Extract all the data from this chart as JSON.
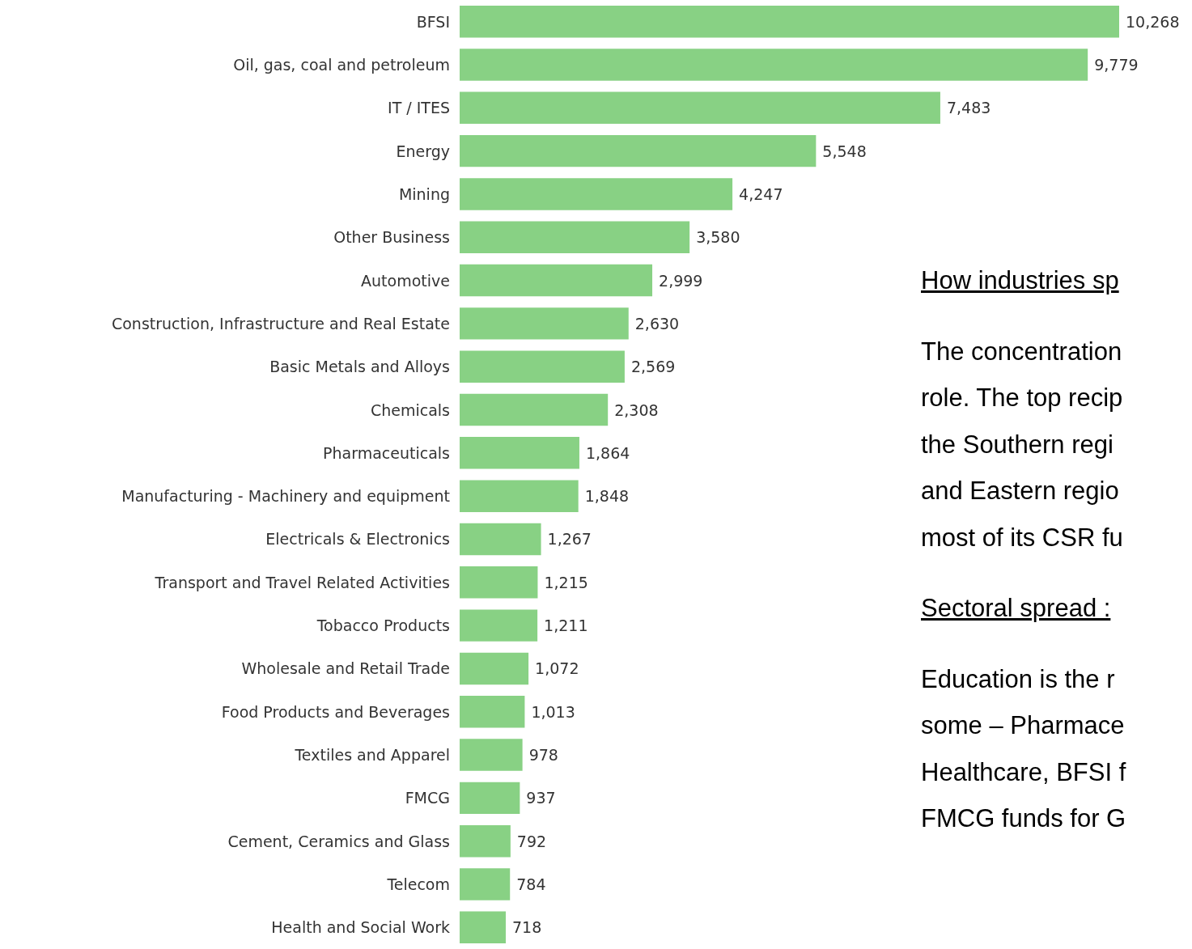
{
  "chart_data": {
    "type": "bar",
    "orientation": "horizontal",
    "categories": [
      "BFSI",
      "Oil, gas, coal and petroleum",
      "IT / ITES",
      "Energy",
      "Mining",
      "Other Business",
      "Automotive",
      "Construction, Infrastructure and Real Estate",
      "Basic Metals and Alloys",
      "Chemicals",
      "Pharmaceuticals",
      "Manufacturing - Machinery and equipment",
      "Electricals & Electronics",
      "Transport and Travel Related Activities",
      "Tobacco Products",
      "Wholesale and Retail Trade",
      "Food Products and Beverages",
      "Textiles and Apparel",
      "FMCG",
      "Cement, Ceramics and Glass",
      "Telecom",
      "Health and Social Work"
    ],
    "values": [
      10268,
      9779,
      7483,
      5548,
      4247,
      3580,
      2999,
      2630,
      2569,
      2308,
      1864,
      1848,
      1267,
      1215,
      1211,
      1072,
      1013,
      978,
      937,
      792,
      784,
      718
    ],
    "value_labels": [
      "10,268",
      "9,779",
      "7,483",
      "5,548",
      "4,247",
      "3,580",
      "2,999",
      "2,630",
      "2,569",
      "2,308",
      "1,864",
      "1,848",
      "1,267",
      "1,215",
      "1,211",
      "1,072",
      "1,013",
      "978",
      "937",
      "792",
      "784",
      "718"
    ],
    "color": "#88d184",
    "annotations": [
      "How industries sp",
      "The concentration",
      "role. The top recip",
      "the Southern regi",
      "and Eastern regio",
      "most of its CSR fu",
      "Sectoral spread :",
      "Education is the r",
      "some – Pharmace",
      "Healthcare, BFSI f",
      "FMCG funds for G"
    ]
  }
}
